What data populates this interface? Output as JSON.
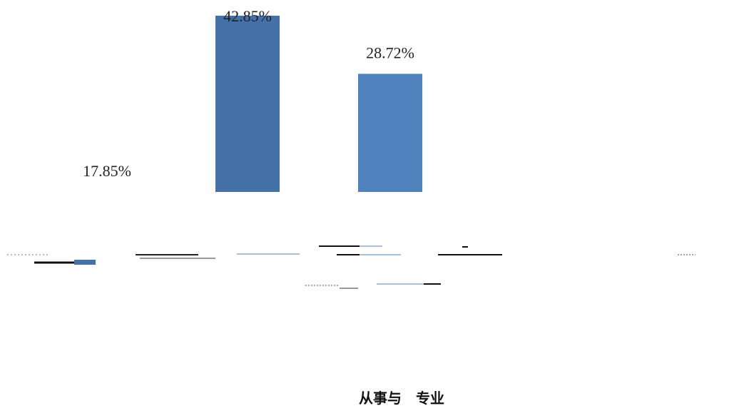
{
  "chart_data": {
    "type": "bar",
    "categories": [
      "",
      "",
      "",
      "",
      ""
    ],
    "values": [
      17.85,
      42.85,
      28.72,
      null,
      null
    ],
    "data_labels": [
      "17.85%",
      "42.85%",
      "28.72%",
      "",
      ""
    ],
    "title": "",
    "xlabel": "从事与　专业",
    "ylabel": "",
    "ylim": [
      0,
      45
    ],
    "grid": false,
    "legend": "none",
    "colors": {
      "bar_dark": "#4472A8",
      "bar_light": "#4F81BD"
    }
  }
}
